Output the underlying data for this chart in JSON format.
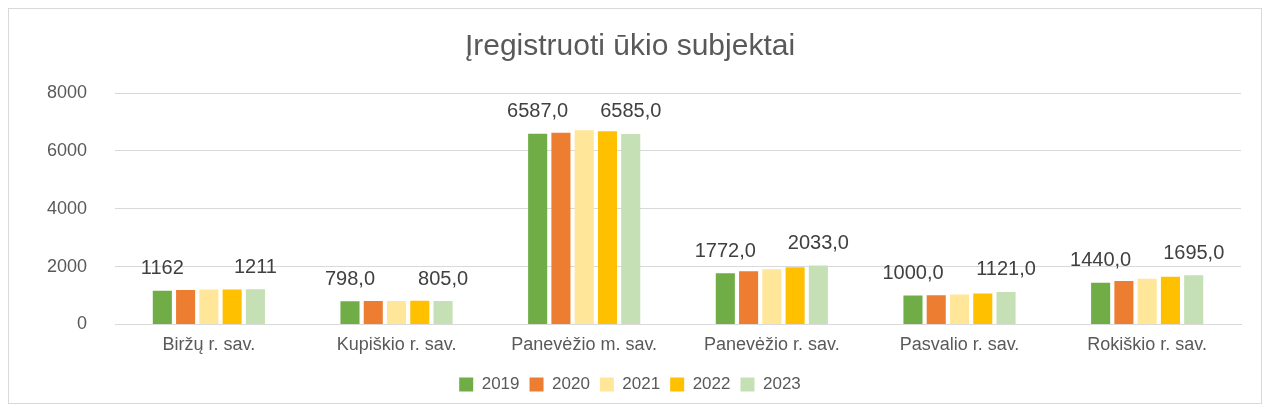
{
  "chart_data": {
    "type": "bar",
    "title": "Įregistruoti ūkio subjektai",
    "categories": [
      "Biržų r. sav.",
      "Kupiškio r. sav.",
      "Panevėžio m. sav.",
      "Panevėžio r. sav.",
      "Pasvalio r. sav.",
      "Rokiškio r. sav."
    ],
    "series": [
      {
        "name": "2019",
        "color": "#70ad47",
        "values": [
          1162,
          798,
          6587,
          1772,
          1000,
          1440
        ],
        "value_labels": [
          "1162",
          "798,0",
          "6587,0",
          "1772,0",
          "1000,0",
          "1440,0"
        ]
      },
      {
        "name": "2020",
        "color": "#ed7d31",
        "values": [
          1190,
          810,
          6630,
          1840,
          1010,
          1500
        ]
      },
      {
        "name": "2021",
        "color": "#ffe699",
        "values": [
          1210,
          810,
          6710,
          1910,
          1030,
          1580
        ]
      },
      {
        "name": "2022",
        "color": "#ffc000",
        "values": [
          1210,
          815,
          6680,
          1980,
          1070,
          1650
        ]
      },
      {
        "name": "2023",
        "color": "#c5e0b4",
        "values": [
          1211,
          805,
          6585,
          2033,
          1121,
          1695
        ],
        "value_labels": [
          "1211",
          "805,0",
          "6585,0",
          "2033,0",
          "1121,0",
          "1695,0"
        ]
      }
    ],
    "ylim": [
      0,
      8000
    ],
    "yticks": [
      0,
      2000,
      4000,
      6000,
      8000
    ],
    "grid": "y",
    "legend": "bottom"
  }
}
